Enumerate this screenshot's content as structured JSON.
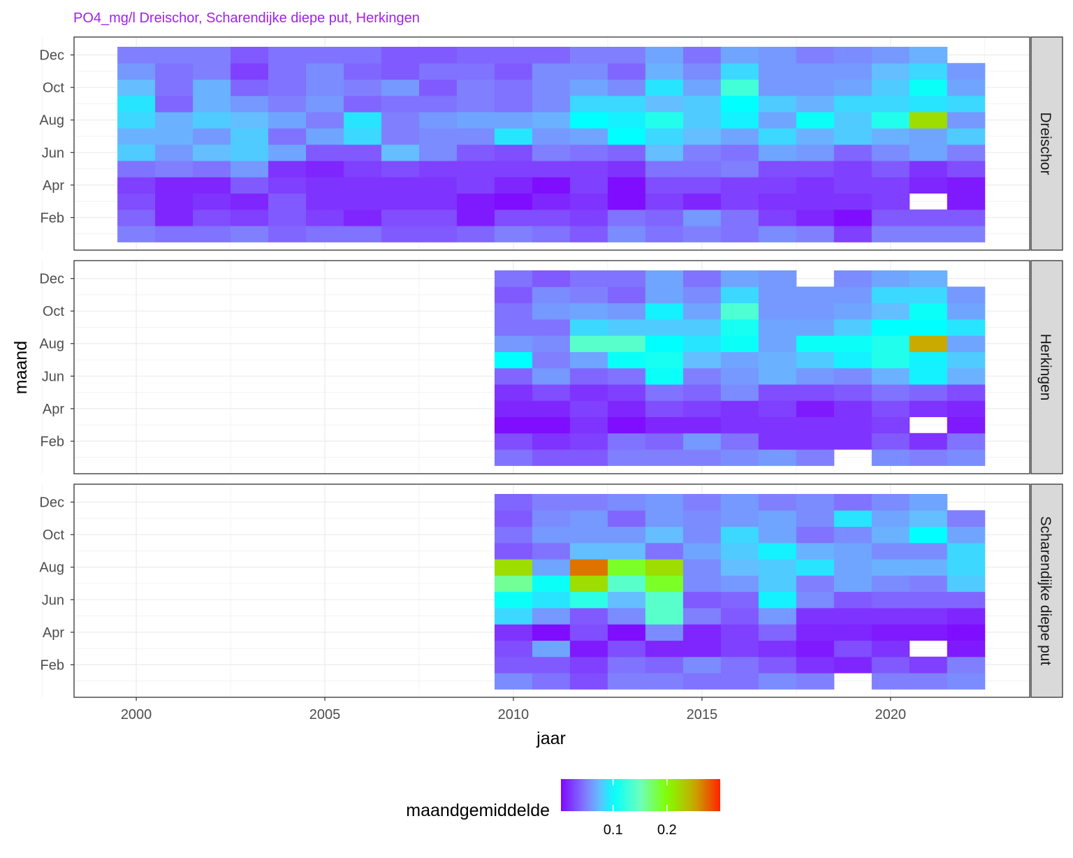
{
  "chart_data": {
    "type": "heatmap",
    "title": "PO4_mg/l Dreischor, Scharendijke diepe put, Herkingen",
    "xlabel": "jaar",
    "ylabel": "maand",
    "xlim": [
      1998.35,
      2023.69
    ],
    "ylim": [
      0,
      13.1
    ],
    "x_ticks": [
      2000,
      2005,
      2010,
      2015,
      2020
    ],
    "x_tick_labels": [
      "2000",
      "2005",
      "2010",
      "2015",
      "2020"
    ],
    "y_ticks": [
      2,
      4,
      6,
      8,
      10,
      12
    ],
    "y_tick_labels": [
      "Feb",
      "Apr",
      "Jun",
      "Aug",
      "Oct",
      "Dec"
    ],
    "grid": true,
    "legend": {
      "title": "maandgemiddelde",
      "position": "bottom",
      "range": [
        0.003,
        0.299
      ],
      "ticks": [
        0.1,
        0.2
      ],
      "tick_labels": [
        "0.1",
        "0.2"
      ],
      "colors": [
        {
          "value": 0.0,
          "color": "#7F00FF"
        },
        {
          "value": 0.05,
          "color": "#8080FF"
        },
        {
          "value": 0.075,
          "color": "#64BEFF"
        },
        {
          "value": 0.1,
          "color": "#00FFFF"
        },
        {
          "value": 0.15,
          "color": "#6EFFBE"
        },
        {
          "value": 0.2,
          "color": "#80FF00"
        },
        {
          "value": 0.25,
          "color": "#C8AA00"
        },
        {
          "value": 0.3,
          "color": "#FF2000"
        }
      ]
    },
    "months_order": "values per year are Jan..Dec",
    "panels": [
      {
        "name": "Dreischor",
        "years": [
          2000,
          2001,
          2002,
          2003,
          2004,
          2005,
          2006,
          2007,
          2008,
          2009,
          2010,
          2011,
          2012,
          2013,
          2014,
          2015,
          2016,
          2017,
          2018,
          2019,
          2020,
          2021,
          2022
        ],
        "values": [
          [
            0.05,
            0.04,
            0.03,
            0.025,
            0.045,
            0.08,
            0.07,
            0.085,
            0.09,
            0.075,
            0.06,
            0.05
          ],
          [
            0.045,
            0.015,
            0.015,
            0.015,
            0.05,
            0.06,
            0.07,
            0.07,
            0.04,
            0.045,
            0.045,
            0.05
          ],
          [
            0.045,
            0.03,
            0.02,
            0.015,
            0.045,
            0.075,
            0.06,
            0.08,
            0.07,
            0.07,
            0.05,
            0.05
          ],
          [
            0.05,
            0.025,
            0.015,
            0.035,
            0.06,
            0.08,
            0.08,
            0.075,
            0.06,
            0.04,
            0.025,
            0.035
          ],
          [
            0.04,
            0.035,
            0.035,
            0.025,
            0.02,
            0.065,
            0.045,
            0.065,
            0.05,
            0.045,
            0.045,
            0.045
          ],
          [
            0.045,
            0.025,
            0.02,
            0.02,
            0.015,
            0.035,
            0.065,
            0.05,
            0.06,
            0.055,
            0.055,
            0.045
          ],
          [
            0.045,
            0.015,
            0.02,
            0.02,
            0.025,
            0.035,
            0.085,
            0.09,
            0.04,
            0.05,
            0.04,
            0.045
          ],
          [
            0.035,
            0.03,
            0.02,
            0.02,
            0.03,
            0.075,
            0.05,
            0.05,
            0.045,
            0.06,
            0.035,
            0.035
          ],
          [
            0.035,
            0.03,
            0.02,
            0.02,
            0.025,
            0.055,
            0.055,
            0.06,
            0.045,
            0.035,
            0.045,
            0.035
          ],
          [
            0.04,
            0.01,
            0.01,
            0.025,
            0.025,
            0.035,
            0.055,
            0.065,
            0.05,
            0.05,
            0.045,
            0.04
          ],
          [
            0.05,
            0.03,
            0.005,
            0.015,
            0.025,
            0.03,
            0.09,
            0.065,
            0.045,
            0.045,
            0.035,
            0.04
          ],
          [
            0.045,
            0.03,
            0.015,
            0.005,
            0.025,
            0.05,
            0.06,
            0.07,
            0.055,
            0.055,
            0.055,
            0.04
          ],
          [
            0.035,
            0.025,
            0.02,
            0.025,
            0.025,
            0.045,
            0.065,
            0.1,
            0.085,
            0.065,
            0.055,
            0.05
          ],
          [
            0.055,
            0.045,
            0.005,
            0.005,
            0.02,
            0.04,
            0.1,
            0.095,
            0.085,
            0.055,
            0.04,
            0.05
          ],
          [
            0.045,
            0.04,
            0.025,
            0.03,
            0.045,
            0.075,
            0.085,
            0.115,
            0.075,
            0.09,
            0.07,
            0.065
          ],
          [
            0.05,
            0.06,
            0.015,
            0.03,
            0.045,
            0.05,
            0.075,
            0.08,
            0.08,
            0.065,
            0.055,
            0.045
          ],
          [
            0.045,
            0.045,
            0.025,
            0.025,
            0.05,
            0.045,
            0.065,
            0.095,
            0.1,
            0.13,
            0.085,
            0.065
          ],
          [
            0.055,
            0.025,
            0.02,
            0.025,
            0.03,
            0.065,
            0.085,
            0.065,
            0.08,
            0.06,
            0.06,
            0.06
          ],
          [
            0.05,
            0.015,
            0.02,
            0.02,
            0.03,
            0.06,
            0.07,
            0.105,
            0.07,
            0.06,
            0.06,
            0.05
          ],
          [
            0.025,
            0.005,
            0.02,
            0.025,
            0.025,
            0.04,
            0.08,
            0.08,
            0.085,
            0.065,
            0.06,
            0.055
          ],
          [
            0.05,
            0.035,
            0.025,
            0.025,
            0.035,
            0.055,
            0.07,
            0.115,
            0.085,
            0.08,
            0.075,
            0.06
          ],
          [
            0.05,
            0.035,
            null,
            0.015,
            0.02,
            0.065,
            0.065,
            0.22,
            0.09,
            0.105,
            0.085,
            0.07
          ],
          [
            0.05,
            0.035,
            0.01,
            0.01,
            0.03,
            0.05,
            0.08,
            0.06,
            0.085,
            0.065,
            0.06,
            null
          ]
        ]
      },
      {
        "name": "Herkingen",
        "years": [
          2010,
          2011,
          2012,
          2013,
          2014,
          2015,
          2016,
          2017,
          2018,
          2019,
          2020,
          2021,
          2022
        ],
        "values": [
          [
            0.045,
            0.03,
            0.005,
            0.015,
            0.02,
            0.04,
            0.1,
            0.06,
            0.045,
            0.045,
            0.035,
            0.045
          ],
          [
            0.035,
            0.02,
            0.005,
            0.015,
            0.03,
            0.06,
            0.05,
            0.055,
            0.045,
            0.06,
            0.055,
            0.035
          ],
          [
            0.035,
            0.025,
            0.02,
            0.025,
            0.02,
            0.04,
            0.065,
            0.14,
            0.085,
            0.065,
            0.05,
            0.045
          ],
          [
            0.05,
            0.045,
            0.005,
            0.015,
            0.025,
            0.045,
            0.105,
            0.14,
            0.08,
            0.06,
            0.04,
            0.045
          ],
          [
            0.05,
            0.04,
            0.015,
            0.03,
            0.045,
            0.105,
            0.11,
            0.1,
            0.08,
            0.095,
            0.065,
            0.065
          ],
          [
            0.05,
            0.06,
            0.015,
            0.025,
            0.04,
            0.05,
            0.075,
            0.09,
            0.08,
            0.065,
            0.055,
            0.045
          ],
          [
            0.055,
            0.045,
            0.02,
            0.02,
            0.055,
            0.06,
            0.065,
            0.105,
            0.11,
            0.135,
            0.085,
            0.065
          ],
          [
            0.06,
            0.02,
            0.02,
            0.025,
            0.03,
            0.07,
            0.07,
            0.065,
            0.065,
            0.06,
            0.06,
            0.06
          ],
          [
            0.05,
            0.02,
            0.02,
            0.01,
            0.03,
            0.06,
            0.08,
            0.105,
            0.065,
            0.06,
            0.06,
            null
          ],
          [
            null,
            0.02,
            0.02,
            0.02,
            0.035,
            0.055,
            0.095,
            0.105,
            0.08,
            0.065,
            0.06,
            0.055
          ],
          [
            0.055,
            0.035,
            0.025,
            0.03,
            0.045,
            0.07,
            0.115,
            0.115,
            0.1,
            0.075,
            0.085,
            0.065
          ],
          [
            0.05,
            0.02,
            null,
            0.02,
            0.04,
            0.095,
            0.095,
            0.25,
            0.1,
            0.105,
            0.085,
            0.07
          ],
          [
            0.055,
            0.045,
            0.01,
            0.015,
            0.03,
            0.07,
            0.08,
            0.065,
            0.09,
            0.065,
            0.06,
            null
          ]
        ]
      },
      {
        "name": "Scharendijke diepe put",
        "years": [
          2010,
          2011,
          2012,
          2013,
          2014,
          2015,
          2016,
          2017,
          2018,
          2019,
          2020,
          2021,
          2022
        ],
        "values": [
          [
            0.055,
            0.035,
            0.03,
            0.02,
            0.085,
            0.105,
            0.16,
            0.22,
            0.035,
            0.045,
            0.035,
            0.04
          ],
          [
            0.045,
            0.035,
            0.065,
            0.005,
            0.06,
            0.09,
            0.105,
            0.065,
            0.045,
            0.06,
            0.055,
            0.05
          ],
          [
            0.03,
            0.025,
            0.01,
            0.03,
            0.035,
            0.12,
            0.22,
            0.27,
            0.075,
            0.06,
            0.06,
            0.05
          ],
          [
            0.05,
            0.045,
            0.03,
            0.005,
            0.055,
            0.075,
            0.14,
            0.19,
            0.075,
            0.06,
            0.04,
            0.055
          ],
          [
            0.05,
            0.04,
            0.015,
            0.055,
            0.14,
            0.14,
            0.19,
            0.22,
            0.045,
            0.075,
            0.06,
            0.06
          ],
          [
            0.045,
            0.055,
            0.015,
            0.015,
            0.05,
            0.035,
            0.055,
            0.055,
            0.065,
            0.055,
            0.055,
            0.05
          ],
          [
            0.045,
            0.045,
            0.025,
            0.025,
            0.035,
            0.04,
            0.06,
            0.075,
            0.08,
            0.085,
            0.06,
            0.06
          ],
          [
            0.055,
            0.035,
            0.02,
            0.04,
            0.06,
            0.095,
            0.08,
            0.08,
            0.095,
            0.065,
            0.065,
            0.05
          ],
          [
            0.05,
            0.02,
            0.01,
            0.015,
            0.02,
            0.055,
            0.05,
            0.09,
            0.07,
            0.045,
            0.055,
            0.055
          ],
          [
            null,
            0.015,
            0.03,
            0.015,
            0.02,
            0.035,
            0.065,
            0.065,
            0.065,
            0.055,
            0.09,
            0.045
          ],
          [
            0.05,
            0.035,
            0.02,
            0.01,
            0.02,
            0.04,
            0.055,
            0.07,
            0.055,
            0.07,
            0.065,
            0.055
          ],
          [
            0.05,
            0.025,
            null,
            0.01,
            0.02,
            0.04,
            0.05,
            0.07,
            0.055,
            0.1,
            0.075,
            0.065
          ],
          [
            0.055,
            0.05,
            0.01,
            0.005,
            0.015,
            0.04,
            0.08,
            0.085,
            0.085,
            0.065,
            0.05,
            null
          ]
        ]
      }
    ]
  }
}
